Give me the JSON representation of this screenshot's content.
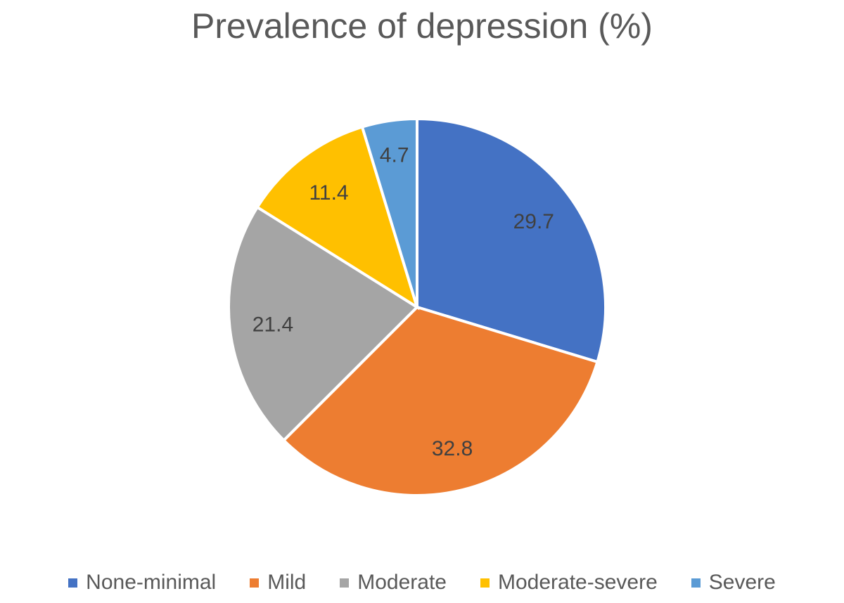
{
  "chart_data": {
    "type": "pie",
    "title": "Prevalence of depression (%)",
    "categories": [
      "None-minimal",
      "Mild",
      "Moderate",
      "Moderate-severe",
      "Severe"
    ],
    "values": [
      29.7,
      32.8,
      21.4,
      11.4,
      4.7
    ],
    "labels": [
      "29.7",
      "32.8",
      "21.4",
      "11.4",
      "4.7"
    ],
    "colors": [
      "#4472C4",
      "#ED7D31",
      "#A5A5A5",
      "#FFC000",
      "#5B9BD5"
    ],
    "start": "top, clockwise",
    "legend": "bottom"
  }
}
